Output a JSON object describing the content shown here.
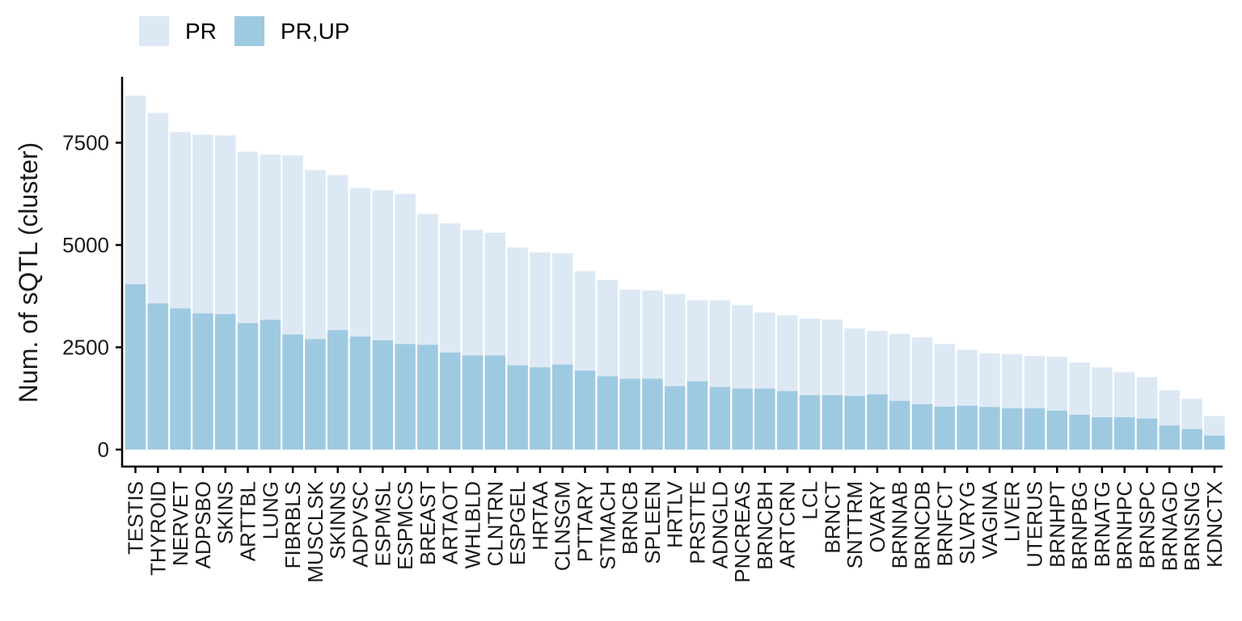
{
  "colors": {
    "PR": "#dce9f5",
    "PR,UP": "#9ecae1",
    "axis": "#000000"
  },
  "chart_data": {
    "type": "bar",
    "stacked": false,
    "overlaid": true,
    "legend_position": "top-left",
    "ylabel": "Num. of sQTL (cluster)",
    "xlabel": "",
    "ylim": [
      0,
      9000
    ],
    "yticks": [
      0,
      2500,
      5000,
      7500
    ],
    "categories": [
      "TESTIS",
      "THYROID",
      "NERVET",
      "ADPSBO",
      "SKINS",
      "ARTTBL",
      "LUNG",
      "FIBRBLS",
      "MUSCLSK",
      "SKINNS",
      "ADPVSC",
      "ESPMSL",
      "ESPMCS",
      "BREAST",
      "ARTAOT",
      "WHLBLD",
      "CLNTRN",
      "ESPGEL",
      "HRTAA",
      "CLNSGM",
      "PTTARY",
      "STMACH",
      "BRNCB",
      "SPLEEN",
      "HRTLV",
      "PRSTTE",
      "ADNGLD",
      "PNCREAS",
      "BRNCBH",
      "ARTCRN",
      "LCL",
      "BRNCT",
      "SNTTRM",
      "OVARY",
      "BRNNAB",
      "BRNCDB",
      "BRNFCT",
      "SLVRYG",
      "VAGINA",
      "LIVER",
      "UTERUS",
      "BRNHPT",
      "BRNPBG",
      "BRNATG",
      "BRNHPC",
      "BRNSPC",
      "BRNAGD",
      "BRNSNG",
      "KDNCTX"
    ],
    "series": [
      {
        "name": "PR",
        "values": [
          8650,
          8230,
          7760,
          7700,
          7680,
          7280,
          7210,
          7190,
          6830,
          6710,
          6390,
          6340,
          6250,
          5760,
          5530,
          5370,
          5300,
          4940,
          4820,
          4800,
          4360,
          4150,
          3910,
          3890,
          3800,
          3650,
          3650,
          3530,
          3350,
          3280,
          3200,
          3180,
          2960,
          2900,
          2830,
          2740,
          2580,
          2440,
          2350,
          2330,
          2290,
          2270,
          2130,
          2010,
          1890,
          1770,
          1450,
          1240,
          820
        ]
      },
      {
        "name": "PR,UP",
        "values": [
          4040,
          3570,
          3450,
          3330,
          3310,
          3090,
          3170,
          2810,
          2700,
          2920,
          2760,
          2670,
          2580,
          2560,
          2370,
          2300,
          2300,
          2060,
          2010,
          2080,
          1930,
          1790,
          1730,
          1730,
          1550,
          1670,
          1530,
          1490,
          1490,
          1430,
          1330,
          1330,
          1310,
          1350,
          1190,
          1110,
          1050,
          1070,
          1040,
          1010,
          1010,
          950,
          850,
          790,
          790,
          760,
          590,
          500,
          340
        ]
      }
    ]
  }
}
